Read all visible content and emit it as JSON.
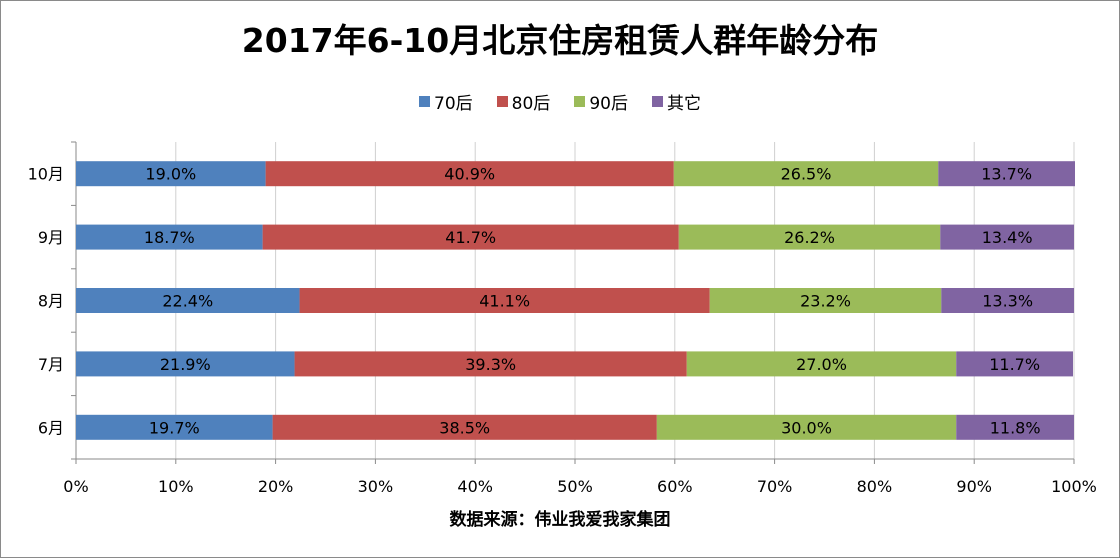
{
  "chart_data": {
    "type": "bar",
    "orientation": "horizontal",
    "stacked": "percent",
    "title": "2017年6-10月北京住房租赁人群年龄分布",
    "categories": [
      "10月",
      "9月",
      "8月",
      "7月",
      "6月"
    ],
    "series": [
      {
        "name": "70后",
        "color": "#4f81bd",
        "values": [
          19.0,
          18.7,
          22.4,
          21.9,
          19.7
        ]
      },
      {
        "name": "80后",
        "color": "#c0504d",
        "values": [
          40.9,
          41.7,
          41.1,
          39.3,
          38.5
        ]
      },
      {
        "name": "90后",
        "color": "#9bbb59",
        "values": [
          26.5,
          26.2,
          23.2,
          27.0,
          30.0
        ]
      },
      {
        "name": "其它",
        "color": "#8064a2",
        "values": [
          13.7,
          13.4,
          13.3,
          11.7,
          11.8
        ]
      }
    ],
    "xlim": [
      0,
      100
    ],
    "x_ticks": [
      "0%",
      "10%",
      "20%",
      "30%",
      "40%",
      "50%",
      "60%",
      "70%",
      "80%",
      "90%",
      "100%"
    ],
    "data_label_format": "one-decimal-percent",
    "legend_position": "top",
    "grid": "vertical",
    "source_note": "数据来源：伟业我爱我家集团"
  }
}
